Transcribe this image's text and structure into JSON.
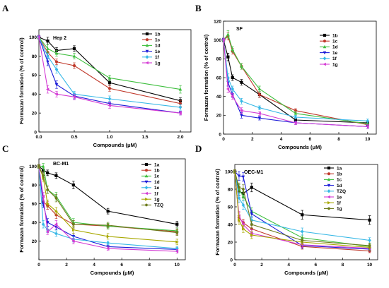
{
  "chart_data": [
    {
      "type": "line",
      "panel": "A",
      "title": "Hep 2",
      "xlabel": "Compounds (μM)",
      "ylabel": "Formazan formation (% of control)",
      "xlim": [
        0,
        2.15
      ],
      "ylim": [
        0,
        108
      ],
      "xticks": [
        0.0,
        0.5,
        1.0,
        1.5,
        2.0
      ],
      "xtick_labels": [
        "0.0",
        "0.5",
        "1.0",
        "1.5",
        "2.0"
      ],
      "yticks": [
        0,
        20,
        40,
        60,
        80,
        100
      ],
      "legend_position": "top-right",
      "series": [
        {
          "name": "1b",
          "color": "#000000",
          "marker": "square",
          "x": [
            0,
            0.125,
            0.25,
            0.5,
            1.0,
            2.0
          ],
          "y": [
            100,
            96,
            86,
            88,
            52,
            33
          ],
          "err": [
            2,
            4,
            3,
            3,
            3,
            3
          ]
        },
        {
          "name": "1c",
          "color": "#c0392b",
          "marker": "circle",
          "x": [
            0,
            0.125,
            0.25,
            0.5,
            1.0,
            2.0
          ],
          "y": [
            100,
            84,
            74,
            70,
            46,
            30
          ],
          "err": [
            2,
            3,
            3,
            3,
            3,
            3
          ]
        },
        {
          "name": "1d",
          "color": "#3fbf3f",
          "marker": "triangle-up",
          "x": [
            0,
            0.125,
            0.25,
            0.5,
            1.0,
            2.0
          ],
          "y": [
            100,
            88,
            83,
            80,
            57,
            45
          ],
          "err": [
            2,
            4,
            3,
            3,
            3,
            4
          ]
        },
        {
          "name": "1e",
          "color": "#1c1cd8",
          "marker": "triangle-down",
          "x": [
            0,
            0.125,
            0.25,
            0.5,
            1.0,
            2.0
          ],
          "y": [
            100,
            74,
            50,
            38,
            30,
            20
          ],
          "err": [
            2,
            4,
            4,
            3,
            2,
            2
          ]
        },
        {
          "name": "1f",
          "color": "#37b8e6",
          "marker": "diamond",
          "x": [
            0,
            0.125,
            0.25,
            0.5,
            1.0,
            2.0
          ],
          "y": [
            100,
            80,
            66,
            40,
            35,
            26
          ],
          "err": [
            2,
            3,
            4,
            3,
            3,
            3
          ]
        },
        {
          "name": "1g",
          "color": "#d43bd4",
          "marker": "triangle-left",
          "x": [
            0,
            0.125,
            0.25,
            0.5,
            1.0,
            2.0
          ],
          "y": [
            100,
            45,
            40,
            37,
            28,
            20
          ],
          "err": [
            2,
            4,
            3,
            3,
            3,
            2
          ]
        }
      ]
    },
    {
      "type": "line",
      "panel": "B",
      "title": "SF",
      "xlabel": "Compounds (μM)",
      "ylabel": "Formazan formation (% of control)",
      "xlim": [
        0,
        10.6
      ],
      "ylim": [
        0,
        120
      ],
      "xticks": [
        0,
        2,
        4,
        6,
        8,
        10
      ],
      "xtick_labels": [
        "0",
        "2",
        "4",
        "6",
        "8",
        "10"
      ],
      "yticks": [
        0,
        20,
        40,
        60,
        80,
        100,
        120
      ],
      "legend_position": "top-right",
      "series": [
        {
          "name": "1b",
          "color": "#000000",
          "marker": "square",
          "x": [
            0,
            0.3125,
            0.625,
            1.25,
            2.5,
            5,
            10
          ],
          "y": [
            100,
            82,
            60,
            55,
            42,
            15,
            12
          ],
          "err": [
            2,
            4,
            3,
            3,
            3,
            2,
            2
          ]
        },
        {
          "name": "1c",
          "color": "#c0392b",
          "marker": "circle",
          "x": [
            0,
            0.3125,
            0.625,
            1.25,
            2.5,
            5,
            10
          ],
          "y": [
            100,
            104,
            88,
            72,
            42,
            25,
            10
          ],
          "err": [
            2,
            4,
            3,
            3,
            3,
            2,
            2
          ]
        },
        {
          "name": "1d",
          "color": "#3fbf3f",
          "marker": "triangle-up",
          "x": [
            0,
            0.3125,
            0.625,
            1.25,
            2.5,
            5,
            10
          ],
          "y": [
            100,
            106,
            90,
            72,
            48,
            22,
            11
          ],
          "err": [
            2,
            4,
            3,
            3,
            3,
            2,
            2
          ]
        },
        {
          "name": "1e",
          "color": "#1c1cd8",
          "marker": "triangle-down",
          "x": [
            0,
            0.3125,
            0.625,
            1.25,
            2.5,
            5,
            10
          ],
          "y": [
            100,
            55,
            42,
            20,
            17,
            12,
            8
          ],
          "err": [
            2,
            4,
            3,
            3,
            2,
            2,
            2
          ]
        },
        {
          "name": "1f",
          "color": "#37b8e6",
          "marker": "diamond",
          "x": [
            0,
            0.3125,
            0.625,
            1.25,
            2.5,
            5,
            10
          ],
          "y": [
            100,
            60,
            48,
            35,
            28,
            18,
            14
          ],
          "err": [
            2,
            4,
            3,
            3,
            2,
            2,
            2
          ]
        },
        {
          "name": "1g",
          "color": "#d43bd4",
          "marker": "triangle-left",
          "x": [
            0,
            0.3125,
            0.625,
            1.25,
            2.5,
            5,
            10
          ],
          "y": [
            100,
            48,
            40,
            25,
            22,
            12,
            8
          ],
          "err": [
            2,
            4,
            3,
            3,
            2,
            2,
            2
          ]
        }
      ]
    },
    {
      "type": "line",
      "panel": "C",
      "title": "BC-M1",
      "xlabel": "Compounds (μM)",
      "ylabel": "Formazan formation (% of control)",
      "xlim": [
        0,
        10.6
      ],
      "ylim": [
        0,
        108
      ],
      "xticks": [
        0,
        2,
        4,
        6,
        8,
        10
      ],
      "xtick_labels": [
        "0",
        "2",
        "4",
        "6",
        "8",
        "10"
      ],
      "yticks": [
        20,
        40,
        60,
        80,
        100
      ],
      "legend_position": "top-right",
      "series": [
        {
          "name": "1a",
          "color": "#000000",
          "marker": "square",
          "x": [
            0,
            0.3125,
            0.625,
            1.25,
            2.5,
            5,
            10
          ],
          "y": [
            100,
            96,
            93,
            90,
            80,
            52,
            38
          ],
          "err": [
            2,
            3,
            3,
            3,
            4,
            3,
            3
          ]
        },
        {
          "name": "1b",
          "color": "#c0392b",
          "marker": "circle",
          "x": [
            0,
            0.3125,
            0.625,
            1.25,
            2.5,
            5,
            10
          ],
          "y": [
            100,
            62,
            58,
            48,
            38,
            36,
            30
          ],
          "err": [
            2,
            4,
            4,
            4,
            4,
            3,
            3
          ]
        },
        {
          "name": "1c",
          "color": "#3fbf3f",
          "marker": "triangle-up",
          "x": [
            0,
            0.3125,
            0.625,
            1.25,
            2.5,
            5,
            10
          ],
          "y": [
            100,
            100,
            75,
            68,
            40,
            36,
            31
          ],
          "err": [
            2,
            3,
            4,
            4,
            4,
            3,
            3
          ]
        },
        {
          "name": "1d",
          "color": "#1c1cd8",
          "marker": "triangle-down",
          "x": [
            0,
            0.3125,
            0.625,
            1.25,
            2.5,
            5,
            10
          ],
          "y": [
            100,
            60,
            40,
            35,
            25,
            14,
            11
          ],
          "err": [
            2,
            4,
            4,
            3,
            3,
            2,
            2
          ]
        },
        {
          "name": "1e",
          "color": "#37b8e6",
          "marker": "diamond",
          "x": [
            0,
            0.3125,
            0.625,
            1.25,
            2.5,
            5,
            10
          ],
          "y": [
            100,
            38,
            32,
            28,
            22,
            18,
            12
          ],
          "err": [
            2,
            4,
            3,
            3,
            3,
            2,
            2
          ]
        },
        {
          "name": "1f",
          "color": "#d43bd4",
          "marker": "triangle-left",
          "x": [
            0,
            0.3125,
            0.625,
            1.25,
            2.5,
            5,
            10
          ],
          "y": [
            100,
            68,
            30,
            38,
            20,
            12,
            9
          ],
          "err": [
            2,
            4,
            3,
            4,
            3,
            2,
            2
          ]
        },
        {
          "name": "1g",
          "color": "#a8a800",
          "marker": "triangle-right",
          "x": [
            0,
            0.3125,
            0.625,
            1.25,
            2.5,
            5,
            10
          ],
          "y": [
            100,
            88,
            60,
            52,
            32,
            25,
            19
          ],
          "err": [
            2,
            4,
            4,
            4,
            4,
            3,
            3
          ]
        },
        {
          "name": "TZQ",
          "color": "#6b7a1a",
          "marker": "hexagon",
          "x": [
            0,
            0.3125,
            0.625,
            1.25,
            2.5,
            5,
            10
          ],
          "y": [
            100,
            90,
            75,
            66,
            38,
            37,
            29
          ],
          "err": [
            2,
            4,
            4,
            4,
            4,
            3,
            3
          ]
        }
      ]
    },
    {
      "type": "line",
      "panel": "D",
      "title": "OEC-M1",
      "xlabel": "Compounds (μM)",
      "ylabel": "Formazan formation (% of control)",
      "xlim": [
        0,
        10.6
      ],
      "ylim": [
        0,
        108
      ],
      "xticks": [
        0,
        2,
        4,
        6,
        8,
        10
      ],
      "xtick_labels": [
        "0",
        "2",
        "4",
        "6",
        "8",
        "10"
      ],
      "yticks": [
        0,
        20,
        40,
        60,
        80,
        100
      ],
      "legend_position": "top-right",
      "series": [
        {
          "name": "1a",
          "color": "#000000",
          "marker": "square",
          "x": [
            0,
            0.3125,
            0.625,
            1.25,
            5,
            10
          ],
          "y": [
            100,
            78,
            75,
            82,
            51,
            45
          ],
          "err": [
            2,
            5,
            5,
            5,
            5,
            5
          ]
        },
        {
          "name": "1b",
          "color": "#c0392b",
          "marker": "circle",
          "x": [
            0,
            0.3125,
            0.625,
            1.25,
            5,
            10
          ],
          "y": [
            100,
            48,
            42,
            35,
            15,
            10
          ],
          "err": [
            2,
            5,
            4,
            4,
            3,
            2
          ]
        },
        {
          "name": "1c",
          "color": "#3fbf3f",
          "marker": "triangle-up",
          "x": [
            0,
            0.3125,
            0.625,
            1.25,
            5,
            10
          ],
          "y": [
            100,
            80,
            72,
            55,
            25,
            15
          ],
          "err": [
            2,
            5,
            5,
            4,
            3,
            3
          ]
        },
        {
          "name": "1d",
          "color": "#1c1cd8",
          "marker": "triangle-down",
          "x": [
            0,
            0.3125,
            0.625,
            1.25,
            5,
            10
          ],
          "y": [
            100,
            95,
            94,
            52,
            16,
            12
          ],
          "err": [
            2,
            5,
            5,
            4,
            3,
            2
          ]
        },
        {
          "name": "TZQ",
          "color": "#37b8e6",
          "marker": "diamond",
          "x": [
            0,
            0.3125,
            0.625,
            1.25,
            5,
            10
          ],
          "y": [
            100,
            70,
            62,
            45,
            32,
            22
          ],
          "err": [
            2,
            5,
            5,
            4,
            4,
            3
          ]
        },
        {
          "name": "1e",
          "color": "#d43bd4",
          "marker": "triangle-left",
          "x": [
            0,
            0.3125,
            0.625,
            1.25,
            5,
            10
          ],
          "y": [
            100,
            50,
            40,
            30,
            17,
            13
          ],
          "err": [
            2,
            5,
            4,
            4,
            3,
            2
          ]
        },
        {
          "name": "1f",
          "color": "#a8a800",
          "marker": "triangle-right",
          "x": [
            0,
            0.3125,
            0.625,
            1.25,
            5,
            10
          ],
          "y": [
            100,
            45,
            35,
            28,
            20,
            14
          ],
          "err": [
            2,
            5,
            4,
            4,
            3,
            3
          ]
        },
        {
          "name": "1g",
          "color": "#6b7a1a",
          "marker": "hexagon",
          "x": [
            0,
            0.3125,
            0.625,
            1.25,
            5,
            10
          ],
          "y": [
            100,
            82,
            80,
            40,
            22,
            16
          ],
          "err": [
            2,
            5,
            5,
            4,
            3,
            3
          ]
        }
      ]
    }
  ]
}
